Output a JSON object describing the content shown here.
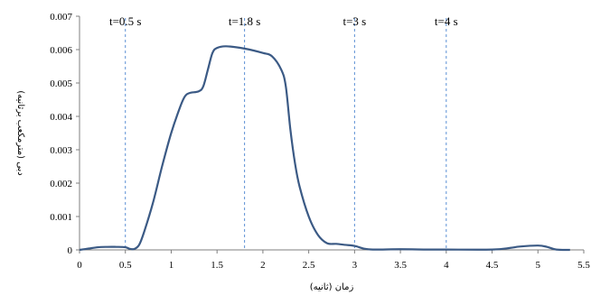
{
  "chart_data": {
    "type": "line",
    "xlabel": "زمان (ثانیه)",
    "ylabel": "دبی (مترمکعب برثانیه)",
    "xlim": [
      0,
      5.5
    ],
    "ylim": [
      0,
      0.007
    ],
    "x_ticks": [
      "0",
      "0.5",
      "1",
      "1.5",
      "2",
      "2.5",
      "3",
      "3.5",
      "4",
      "4.5",
      "5",
      "5.5"
    ],
    "y_ticks": [
      "0",
      "0.001",
      "0.002",
      "0.003",
      "0.004",
      "0.005",
      "0.006",
      "0.007"
    ],
    "grid": false,
    "series": [
      {
        "color": "#3b5a85",
        "points": [
          [
            0,
            0
          ],
          [
            0.1,
            4e-05
          ],
          [
            0.2,
            8e-05
          ],
          [
            0.3,
            9e-05
          ],
          [
            0.4,
            9e-05
          ],
          [
            0.5,
            8e-05
          ],
          [
            0.55,
            3e-05
          ],
          [
            0.6,
            3e-05
          ],
          [
            0.65,
            0.00015
          ],
          [
            0.7,
            0.0005
          ],
          [
            0.8,
            0.0014
          ],
          [
            0.9,
            0.0025
          ],
          [
            1.0,
            0.0035
          ],
          [
            1.1,
            0.0043
          ],
          [
            1.15,
            0.0046
          ],
          [
            1.2,
            0.0047
          ],
          [
            1.3,
            0.00475
          ],
          [
            1.35,
            0.0049
          ],
          [
            1.4,
            0.0054
          ],
          [
            1.45,
            0.0059
          ],
          [
            1.5,
            0.00605
          ],
          [
            1.6,
            0.0061
          ],
          [
            1.8,
            0.00603
          ],
          [
            2.0,
            0.0059
          ],
          [
            2.1,
            0.0058
          ],
          [
            2.2,
            0.0054
          ],
          [
            2.25,
            0.0049
          ],
          [
            2.3,
            0.0036
          ],
          [
            2.35,
            0.0026
          ],
          [
            2.4,
            0.0019
          ],
          [
            2.5,
            0.001
          ],
          [
            2.6,
            0.00045
          ],
          [
            2.7,
            0.0002
          ],
          [
            2.8,
            0.00018
          ],
          [
            2.9,
            0.00015
          ],
          [
            3.0,
            0.00012
          ],
          [
            3.1,
            4e-05
          ],
          [
            3.2,
            1e-05
          ],
          [
            3.5,
            2e-05
          ],
          [
            3.8,
            1e-05
          ],
          [
            4.0,
            1e-05
          ],
          [
            4.5,
            1e-05
          ],
          [
            4.7,
            6e-05
          ],
          [
            4.8,
            0.0001
          ],
          [
            5.0,
            0.00013
          ],
          [
            5.1,
            9e-05
          ],
          [
            5.2,
            1e-05
          ],
          [
            5.35,
            0
          ]
        ]
      }
    ],
    "annotations": [
      {
        "x": 0.5,
        "label": "t=0.5 s"
      },
      {
        "x": 1.8,
        "label": "t=1.8 s"
      },
      {
        "x": 3.0,
        "label": "t=3 s"
      },
      {
        "x": 4.0,
        "label": "t=4 s"
      }
    ],
    "annotation_line_color": "#5b8fd4",
    "axis_color": "#7f7f7f"
  }
}
